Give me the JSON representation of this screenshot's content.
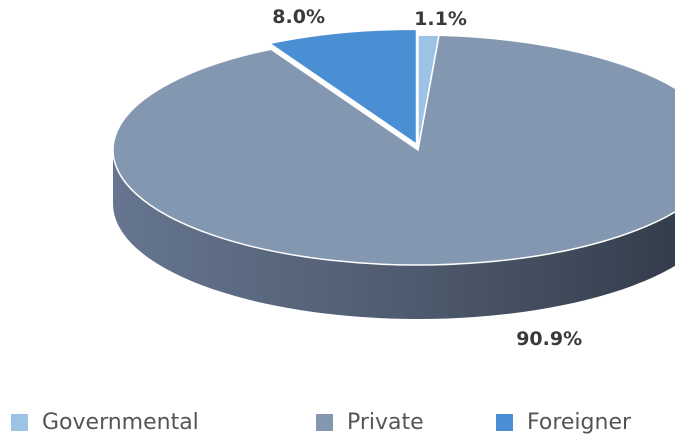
{
  "chart_data": {
    "type": "pie",
    "style": "3d",
    "categories": [
      "Governmental",
      "Private",
      "Foreigner"
    ],
    "values": [
      1.1,
      90.9,
      8.0
    ],
    "labels": [
      "1.1%",
      "90.9%",
      "8.0%"
    ],
    "colors": [
      "#9cc3e6",
      "#8497b0",
      "#4a8ed3"
    ],
    "exploded": "Foreigner",
    "legend": "bottom"
  },
  "legend": {
    "items": [
      {
        "label": "Governmental",
        "color": "#9cc3e6"
      },
      {
        "label": "Private",
        "color": "#8497b0"
      },
      {
        "label": "Foreigner",
        "color": "#4a8ed3"
      }
    ]
  }
}
